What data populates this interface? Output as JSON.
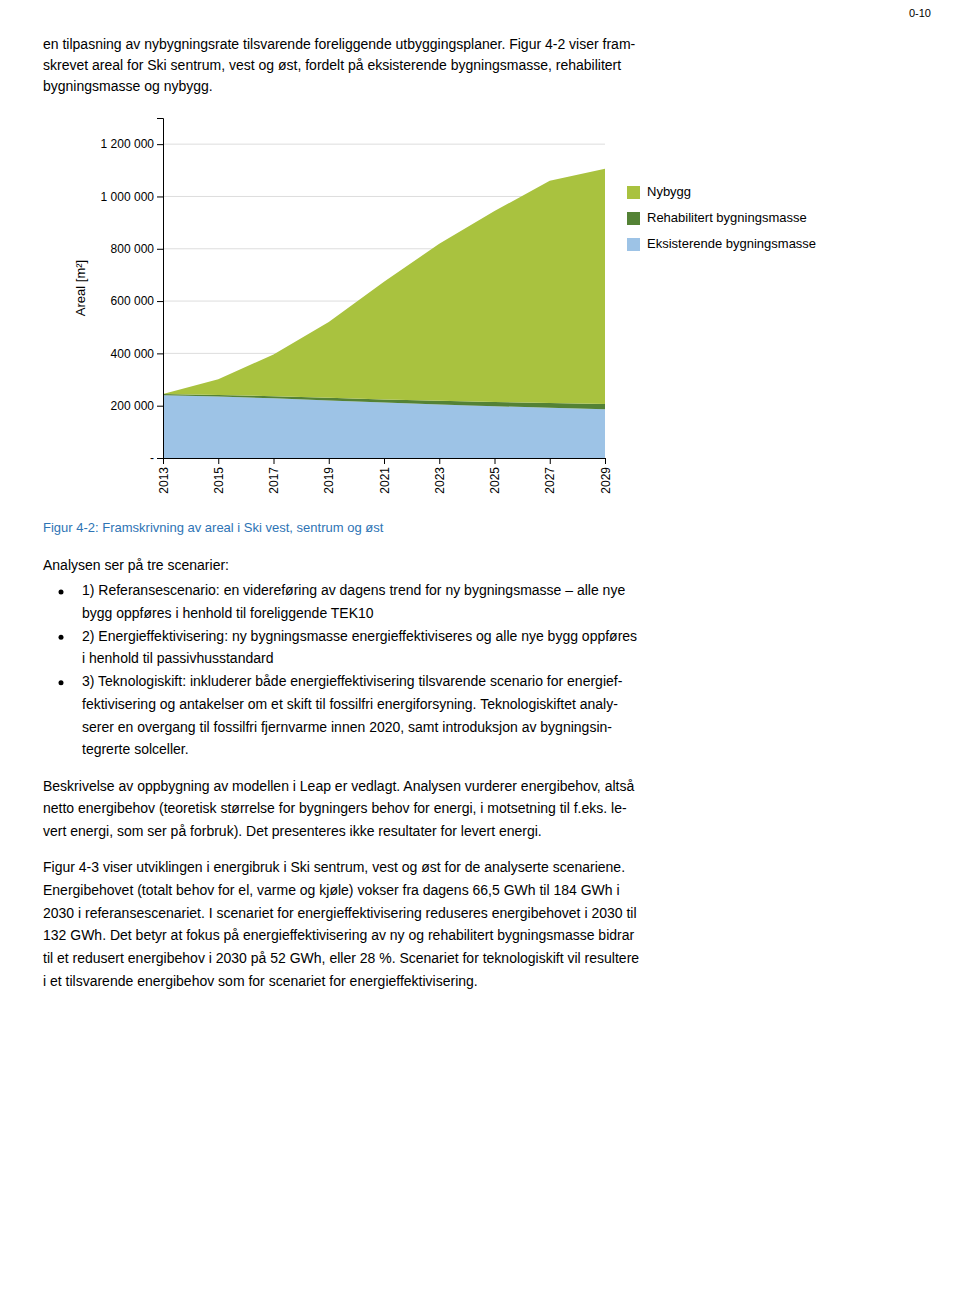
{
  "chart_data": {
    "type": "area",
    "stacked": true,
    "title": "Figur 4-2: Framskrivning av areal i Ski vest, sentrum og øst",
    "ylabel": "Areal [m²]",
    "x": [
      2013,
      2015,
      2017,
      2019,
      2021,
      2023,
      2025,
      2027,
      2029
    ],
    "xlim": [
      2013,
      2029
    ],
    "xticks": [
      2013,
      2015,
      2017,
      2019,
      2021,
      2023,
      2025,
      2027,
      2029
    ],
    "ylim": [
      0,
      1300000
    ],
    "yticks": [
      {
        "value": 0,
        "label": "-"
      },
      {
        "value": 200000,
        "label": "200 000"
      },
      {
        "value": 400000,
        "label": "400 000"
      },
      {
        "value": 600000,
        "label": "600 000"
      },
      {
        "value": 800000,
        "label": "800 000"
      },
      {
        "value": 1000000,
        "label": "1 000 000"
      },
      {
        "value": 1200000,
        "label": "1 200 000"
      }
    ],
    "grid": true,
    "legend": "right",
    "series": [
      {
        "name": "Eksisterende bygningsmasse",
        "color": "#9DC3E6",
        "values": [
          240000,
          235000,
          228000,
          220000,
          212000,
          205000,
          198000,
          192000,
          186000
        ]
      },
      {
        "name": "Rehabilitert bygningsmasse",
        "color": "#548235",
        "values": [
          5000,
          6000,
          8000,
          10000,
          12000,
          14000,
          16000,
          18000,
          20000
        ]
      },
      {
        "name": "Nybygg",
        "color": "#A9C23F",
        "values": [
          0,
          60000,
          160000,
          290000,
          450000,
          600000,
          730000,
          850000,
          900000
        ]
      }
    ]
  },
  "page_text": {
    "top_right": "0-10",
    "intro": [
      "en tilpasning av nybygningsrate tilsvarende foreliggende utbyggingsplaner. Figur 4-2 viser fram-",
      "skrevet areal for Ski sentrum, vest og øst, fordelt på eksisterende bygningsmasse, rehabilitert",
      "bygningsmasse og nybygg."
    ],
    "para1": "Analysen ser på tre scenarier:",
    "bullets": [
      [
        "1) Referansescenario: en videreføring av dagens trend for ny bygningsmasse – alle nye",
        "bygg oppføres i henhold til foreliggende TEK10"
      ],
      [
        "2) Energieffektivisering: ny bygningsmasse energieffektiviseres og alle nye bygg oppføres",
        "i henhold til passivhusstandard"
      ],
      [
        "3) Teknologiskift: inkluderer både energieffektivisering tilsvarende scenario for energief-",
        "fektivisering og antakelser om et skift til fossilfri energiforsyning. Teknologiskiftet analy-",
        "serer en overgang til fossilfri fjernvarme innen 2020, samt introduksjon av bygningsin-",
        "tegrerte solceller."
      ]
    ],
    "para2": [
      "Beskrivelse av oppbygning av modellen i Leap er vedlagt. Analysen vurderer energibehov, altså",
      "netto energibehov (teoretisk størrelse for bygningers behov for energi, i motsetning til f.eks. le-",
      "vert energi, som ser på forbruk). Det presenteres ikke resultater for levert energi."
    ],
    "para3": [
      "Figur 4-3 viser utviklingen i energibruk i Ski sentrum, vest og øst for de analyserte scenariene.",
      "Energibehovet (totalt behov for el, varme og kjøle) vokser fra dagens 66,5 GWh til 184 GWh i",
      "2030 i referansescenariet. I scenariet for energieffektivisering reduseres energibehovet i 2030 til",
      "132 GWh. Det betyr at fokus på energieffektivisering av ny og rehabilitert bygningsmasse bidrar",
      "til et redusert energibehov i 2030 på 52 GWh, eller 28 %. Scenariet for teknologiskift vil resultere",
      "i et tilsvarende energibehov som for scenariet for energieffektivisering."
    ]
  }
}
